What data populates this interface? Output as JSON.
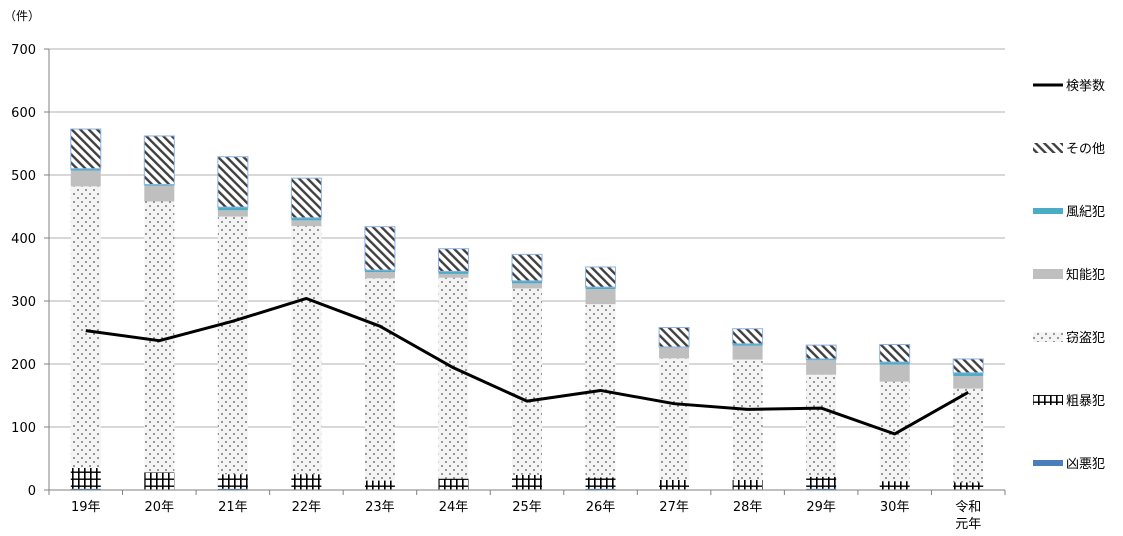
{
  "chart_data": {
    "type": "bar",
    "stacked": true,
    "unit_label": "（件）",
    "categories": [
      "19年",
      "20年",
      "21年",
      "22年",
      "23年",
      "24年",
      "25年",
      "26年",
      "27年",
      "28年",
      "29年",
      "30年",
      "令和\n元年"
    ],
    "ylim": [
      0,
      700
    ],
    "yticks": [
      0,
      100,
      200,
      300,
      400,
      500,
      600,
      700
    ],
    "grid": true,
    "legend_position": "right",
    "series": [
      {
        "name": "凶悪犯",
        "kind": "bar",
        "pattern": "solid",
        "color": "#4a7ebb",
        "values": [
          2,
          1,
          2,
          1,
          1,
          1,
          1,
          2,
          1,
          1,
          2,
          1,
          1
        ]
      },
      {
        "name": "粗暴犯",
        "kind": "bar",
        "pattern": "grid",
        "color": "#000000",
        "values": [
          33,
          27,
          23,
          24,
          14,
          17,
          23,
          18,
          15,
          15,
          19,
          13,
          11
        ]
      },
      {
        "name": "窃盗犯",
        "kind": "bar",
        "pattern": "dots",
        "color": "#888888",
        "values": [
          447,
          430,
          409,
          394,
          321,
          319,
          296,
          275,
          193,
          191,
          162,
          158,
          149
        ]
      },
      {
        "name": "知能犯",
        "kind": "bar",
        "pattern": "solid",
        "color": "#bfbfbf",
        "values": [
          25,
          25,
          10,
          9,
          10,
          6,
          8,
          24,
          17,
          22,
          23,
          27,
          20
        ]
      },
      {
        "name": "風紀犯",
        "kind": "bar",
        "pattern": "solid",
        "color": "#4bacc6",
        "values": [
          3,
          2,
          5,
          4,
          3,
          4,
          4,
          3,
          1,
          3,
          2,
          4,
          5
        ]
      },
      {
        "name": "その他",
        "kind": "bar",
        "pattern": "hatch",
        "color": "#404040",
        "values": [
          63,
          77,
          80,
          63,
          69,
          36,
          42,
          32,
          31,
          24,
          22,
          28,
          22
        ]
      },
      {
        "name": "検挙数",
        "kind": "line",
        "color": "#000000",
        "values": [
          253,
          237,
          268,
          304,
          260,
          194,
          141,
          158,
          137,
          128,
          130,
          89,
          155
        ]
      }
    ]
  }
}
